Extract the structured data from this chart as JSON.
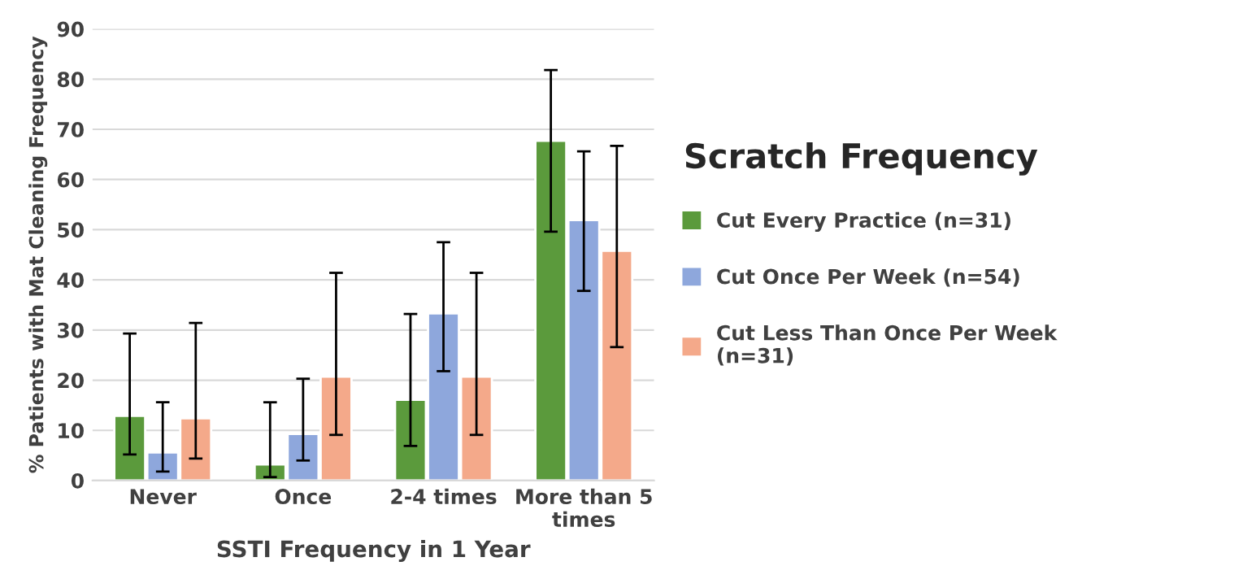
{
  "chart_data": {
    "type": "bar",
    "xlabel": "SSTI Frequency in 1 Year",
    "ylabel": "% Patients with Mat Cleaning Frequency",
    "legend_title": "Scratch Frequency",
    "categories": [
      "Never",
      "Once",
      "2-4 times",
      "More than 5\ntimes"
    ],
    "series": [
      {
        "name": "Cut Every Practice (n=31)",
        "color": "#5b9a3c",
        "values": [
          12.9,
          3.2,
          16.1,
          67.7
        ],
        "errors": [
          [
            5.2,
            29.3
          ],
          [
            0.7,
            15.6
          ],
          [
            6.9,
            33.2
          ],
          [
            49.6,
            81.8
          ]
        ]
      },
      {
        "name": "Cut Once Per Week (n=54)",
        "color": "#8ea7dc",
        "values": [
          5.6,
          9.3,
          33.3,
          51.9
        ],
        "errors": [
          [
            1.8,
            15.6
          ],
          [
            4.0,
            20.3
          ],
          [
            21.8,
            47.5
          ],
          [
            37.8,
            65.6
          ]
        ]
      },
      {
        "name": "Cut Less Than Once Per Week\n(n=31)",
        "color": "#f4a98a",
        "values": [
          12.4,
          20.7,
          20.7,
          45.8
        ],
        "errors": [
          [
            4.4,
            31.4
          ],
          [
            9.1,
            41.4
          ],
          [
            9.1,
            41.4
          ],
          [
            26.6,
            66.7
          ]
        ]
      }
    ],
    "ylim": [
      0,
      90
    ],
    "yticks": [
      0,
      10,
      20,
      30,
      40,
      50,
      60,
      70,
      80,
      90
    ],
    "grid": "y",
    "legend": "right"
  }
}
